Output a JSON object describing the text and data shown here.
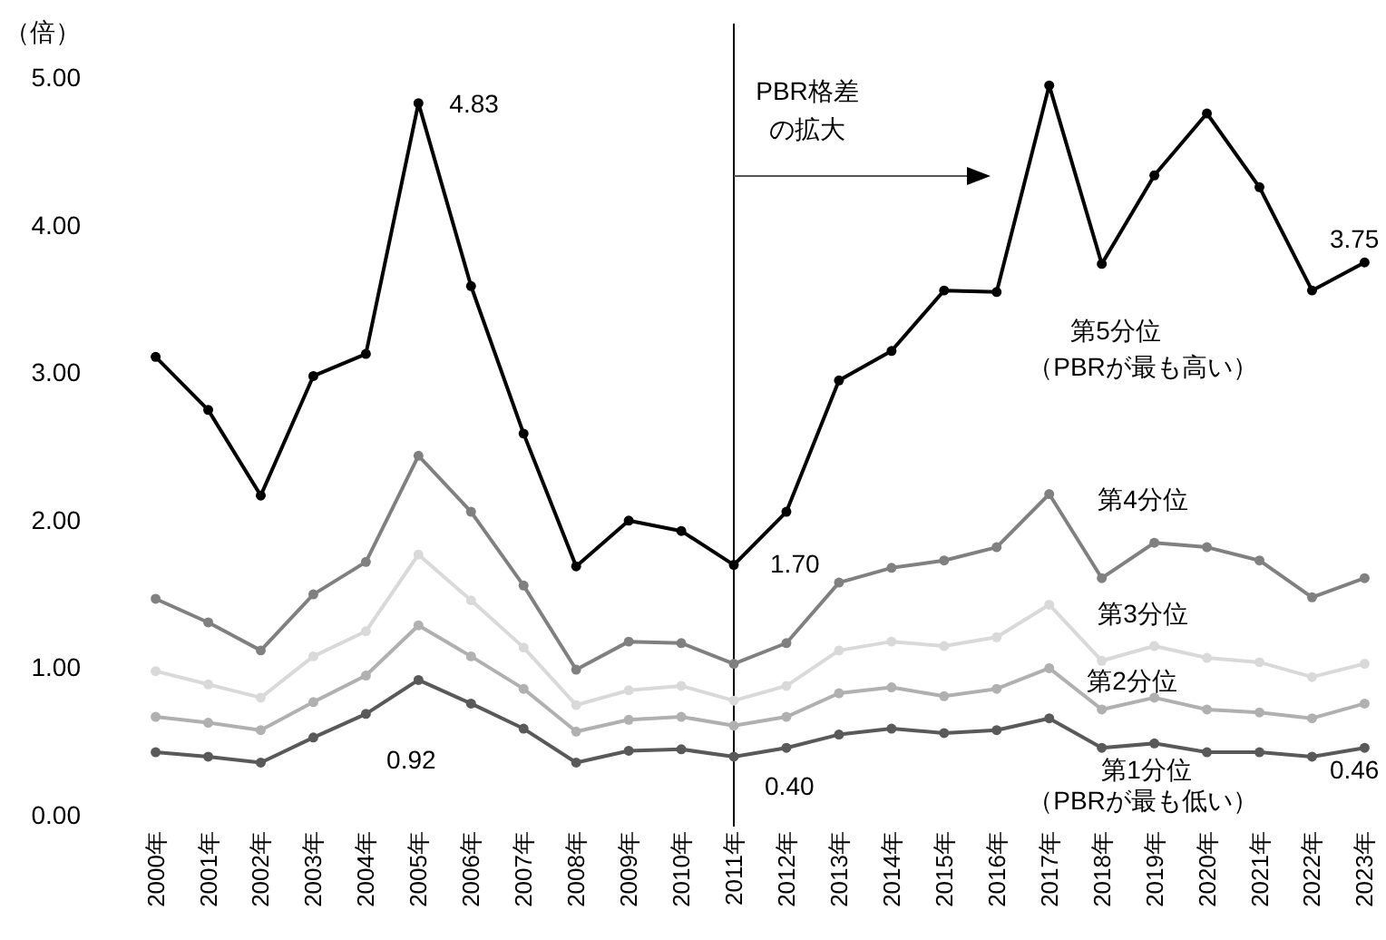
{
  "chart_data": {
    "type": "line",
    "ylabel": "（倍）",
    "categories": [
      "2000年",
      "2001年",
      "2002年",
      "2003年",
      "2004年",
      "2005年",
      "2006年",
      "2007年",
      "2008年",
      "2009年",
      "2010年",
      "2011年",
      "2012年",
      "2013年",
      "2014年",
      "2015年",
      "2016年",
      "2017年",
      "2018年",
      "2019年",
      "2020年",
      "2021年",
      "2022年",
      "2023年"
    ],
    "series": [
      {
        "name": "第5分位",
        "color": "#000000",
        "values": [
          3.11,
          2.75,
          2.17,
          2.98,
          3.13,
          4.83,
          3.59,
          2.59,
          1.69,
          2.0,
          1.93,
          1.7,
          2.06,
          2.95,
          3.15,
          3.56,
          3.55,
          4.95,
          3.74,
          4.34,
          4.76,
          4.26,
          3.56,
          3.75
        ]
      },
      {
        "name": "第4分位",
        "color": "#808080",
        "values": [
          1.47,
          1.31,
          1.12,
          1.5,
          1.72,
          2.44,
          2.06,
          1.56,
          0.99,
          1.18,
          1.17,
          1.03,
          1.17,
          1.58,
          1.68,
          1.73,
          1.82,
          2.18,
          1.61,
          1.85,
          1.82,
          1.73,
          1.48,
          1.61
        ]
      },
      {
        "name": "第3分位",
        "color": "#d9d9d9",
        "values": [
          0.98,
          0.89,
          0.8,
          1.08,
          1.25,
          1.77,
          1.46,
          1.14,
          0.75,
          0.85,
          0.88,
          0.78,
          0.88,
          1.12,
          1.18,
          1.15,
          1.21,
          1.43,
          1.05,
          1.15,
          1.07,
          1.04,
          0.94,
          1.03
        ]
      },
      {
        "name": "第2分位",
        "color": "#b0b0b0",
        "values": [
          0.67,
          0.63,
          0.58,
          0.77,
          0.95,
          1.29,
          1.08,
          0.86,
          0.57,
          0.65,
          0.67,
          0.61,
          0.67,
          0.83,
          0.87,
          0.81,
          0.86,
          1.0,
          0.72,
          0.8,
          0.72,
          0.7,
          0.66,
          0.76
        ]
      },
      {
        "name": "第1分位",
        "color": "#595959",
        "values": [
          0.43,
          0.4,
          0.36,
          0.53,
          0.69,
          0.92,
          0.76,
          0.59,
          0.36,
          0.44,
          0.45,
          0.4,
          0.46,
          0.55,
          0.59,
          0.56,
          0.58,
          0.66,
          0.46,
          0.49,
          0.43,
          0.43,
          0.4,
          0.46
        ]
      }
    ],
    "ylim": [
      0,
      5
    ],
    "yticks": [
      {
        "value": 0,
        "label": "0.00"
      },
      {
        "value": 1,
        "label": "1.00"
      },
      {
        "value": 2,
        "label": "2.00"
      },
      {
        "value": 3,
        "label": "3.00"
      },
      {
        "value": 4,
        "label": "4.00"
      },
      {
        "value": 5,
        "label": "5.00"
      }
    ],
    "ref_lines": [
      {
        "axis": "x",
        "value": "2011年",
        "color": "#000000"
      }
    ],
    "annotations": [
      "PBR格差",
      "の拡大",
      "（PBRが最も高い）",
      "（PBRが最も低い）",
      {
        "text": "4.83",
        "x": "2005年",
        "y": 4.83
      },
      {
        "text": "1.70",
        "x": "2011年",
        "y": 1.7
      },
      {
        "text": "0.40",
        "x": "2011年",
        "y": 0.4
      },
      {
        "text": "0.92",
        "x": "2005年",
        "y": 0.92
      },
      {
        "text": "3.75",
        "x": "2023年",
        "y": 3.75
      },
      {
        "text": "0.46",
        "x": "2023年",
        "y": 0.46
      }
    ],
    "marker": "circle",
    "line_style": "solid",
    "grid": false,
    "legend": false
  }
}
